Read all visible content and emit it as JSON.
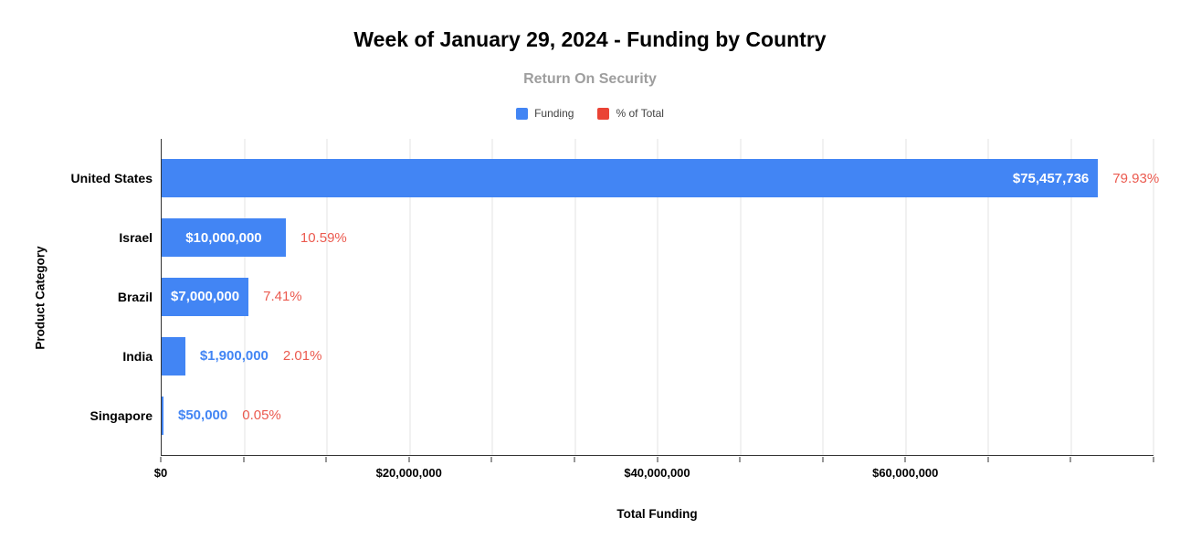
{
  "chart": {
    "title": "Week of January 29, 2024 - Funding by Country",
    "subtitle": "Return On Security",
    "x_axis_title": "Total Funding",
    "y_axis_title": "Product Category",
    "colors": {
      "funding_blue": "#4285F4",
      "percent_red": "#EA4335",
      "percent_label_red": "#EB5A4F",
      "subtitle_gray": "#9E9E9E"
    }
  },
  "chart_data": {
    "type": "bar",
    "orientation": "horizontal",
    "title": "Week of January 29, 2024 - Funding by Country",
    "subtitle": "Return On Security",
    "xlabel": "Total Funding",
    "ylabel": "Product Category",
    "categories": [
      "United States",
      "Israel",
      "Brazil",
      "India",
      "Singapore"
    ],
    "series": [
      {
        "name": "Funding",
        "color": "#4285F4",
        "values": [
          75457736,
          10000000,
          7000000,
          1900000,
          50000
        ],
        "labels": [
          "$75,457,736",
          "$10,000,000",
          "$7,000,000",
          "$1,900,000",
          "$50,000"
        ]
      },
      {
        "name": "% of Total",
        "color": "#EA4335",
        "values": [
          79.93,
          10.59,
          7.41,
          2.01,
          0.05
        ],
        "labels": [
          "79.93%",
          "10.59%",
          "7.41%",
          "2.01%",
          "0.05%"
        ]
      }
    ],
    "value_label_placement": [
      "inside-end",
      "inside-center",
      "inside-center",
      "outside",
      "outside"
    ],
    "xlim": [
      0,
      80000000
    ],
    "x_ticks": [
      0,
      20000000,
      40000000,
      60000000
    ],
    "x_tick_labels": [
      "$0",
      "$20,000,000",
      "$40,000,000",
      "$60,000,000"
    ],
    "minor_gridline_divisions": 12,
    "grid": true,
    "legend_position": "top"
  }
}
